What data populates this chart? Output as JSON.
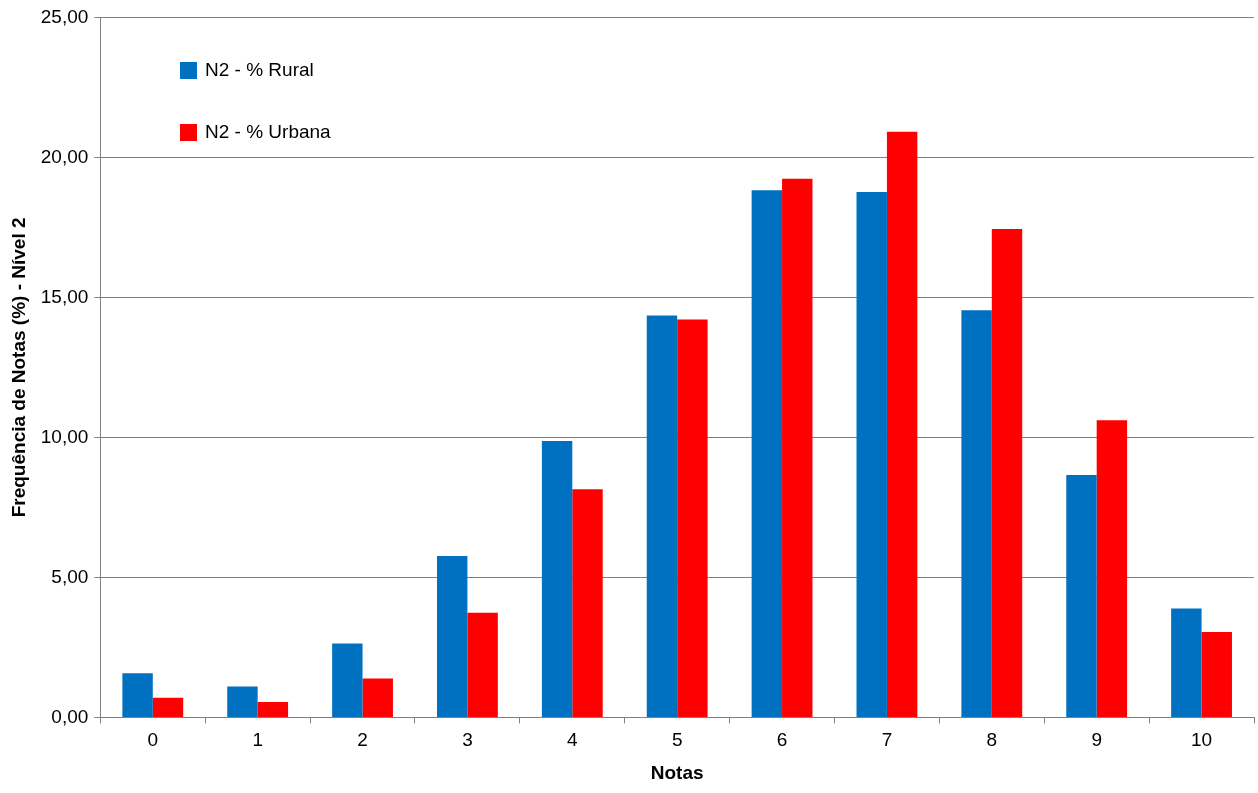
{
  "chart_data": {
    "type": "bar",
    "xlabel": "Notas",
    "ylabel": "Frequência de Notas (%) - Nível 2",
    "categories": [
      "0",
      "1",
      "2",
      "3",
      "4",
      "5",
      "6",
      "7",
      "8",
      "9",
      "10"
    ],
    "series": [
      {
        "name": "N2 - % Rural",
        "color": "#0070c0",
        "values": [
          1.58,
          1.1,
          2.64,
          5.76,
          9.87,
          14.35,
          18.83,
          18.76,
          14.54,
          8.66,
          3.89
        ]
      },
      {
        "name": "N2 - % Urbana",
        "color": "#ff0000",
        "values": [
          0.7,
          0.55,
          1.39,
          3.74,
          8.15,
          14.21,
          19.24,
          20.92,
          17.44,
          10.61,
          3.05
        ]
      }
    ],
    "ylim": [
      0,
      25
    ],
    "yticks": [
      {
        "value": 0,
        "label": "0,00"
      },
      {
        "value": 5,
        "label": "5,00"
      },
      {
        "value": 10,
        "label": "10,00"
      },
      {
        "value": 15,
        "label": "15,00"
      },
      {
        "value": 20,
        "label": "20,00"
      },
      {
        "value": 25,
        "label": "25,00"
      }
    ],
    "grid": "y",
    "legend": "top left"
  }
}
